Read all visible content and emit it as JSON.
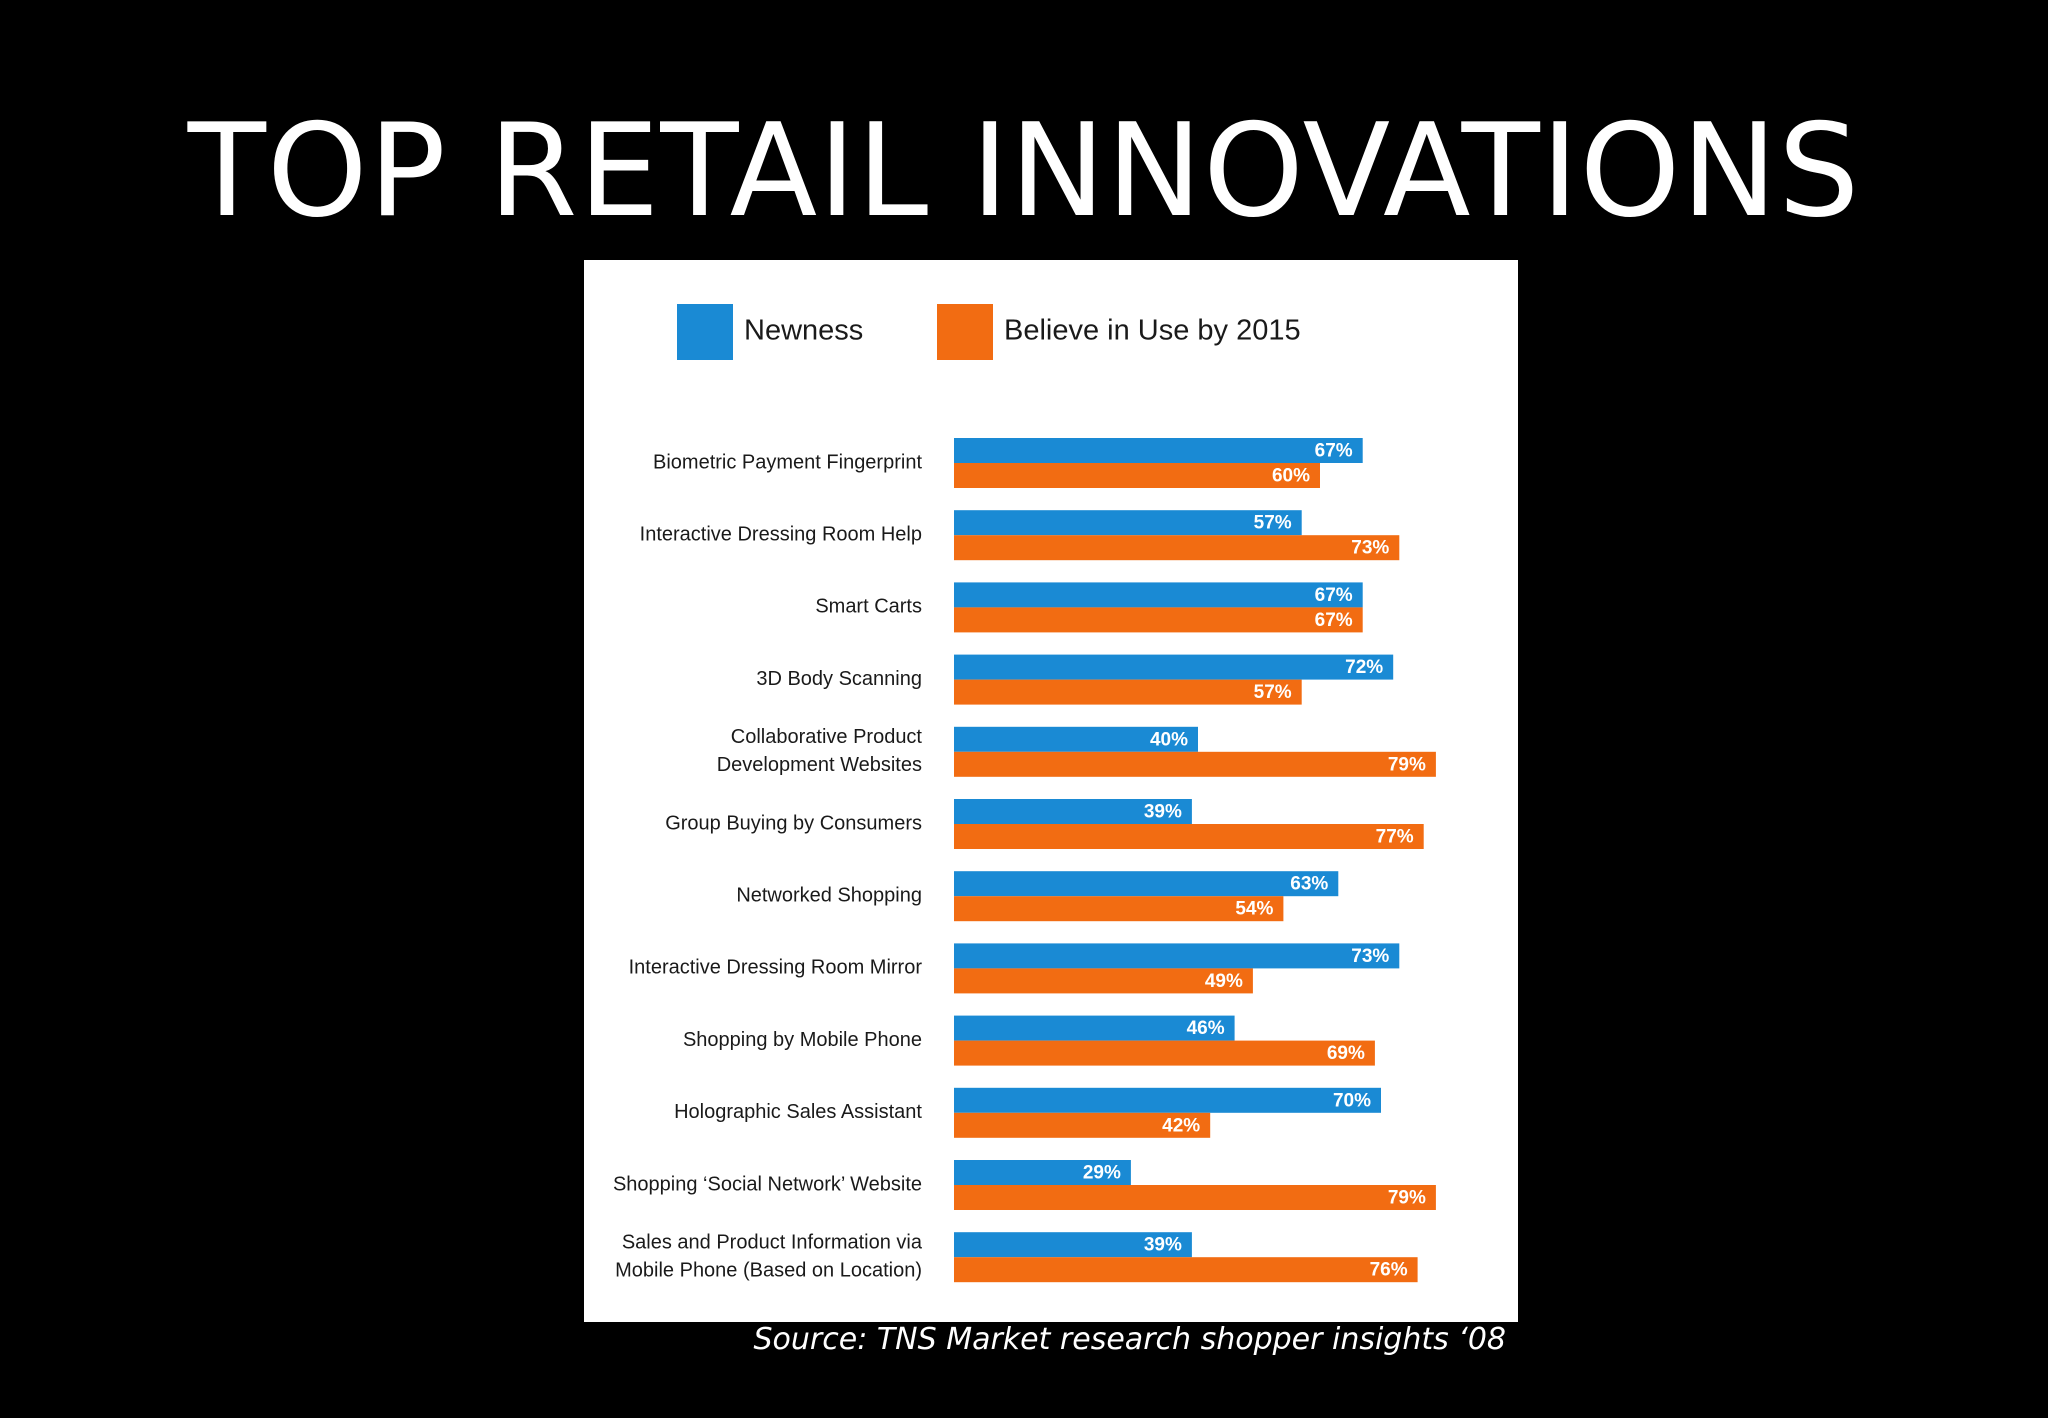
{
  "slide": {
    "title": "TOP RETAIL INNOVATIONS",
    "source": "Source: TNS Market research shopper insights ‘08"
  },
  "colors": {
    "background": "#000000",
    "panel": "#ffffff",
    "newness": "#1a8ad4",
    "believe": "#f26c12",
    "text": "#1a1a1a"
  },
  "chart_data": {
    "type": "bar",
    "orientation": "horizontal",
    "legend_position": "top-left",
    "grid": false,
    "xlim": [
      0,
      100
    ],
    "categories": [
      [
        "Biometric Payment Fingerprint"
      ],
      [
        "Interactive Dressing Room Help"
      ],
      [
        "Smart Carts"
      ],
      [
        "3D Body Scanning"
      ],
      [
        "Collaborative Product",
        "Development Websites"
      ],
      [
        "Group Buying by Consumers"
      ],
      [
        "Networked Shopping"
      ],
      [
        "Interactive Dressing Room Mirror"
      ],
      [
        "Shopping by Mobile Phone"
      ],
      [
        "Holographic Sales Assistant"
      ],
      [
        "Shopping ‘Social Network’ Website"
      ],
      [
        "Sales and Product Information via",
        "Mobile Phone (Based on Location)"
      ]
    ],
    "series": [
      {
        "name": "Newness",
        "color": "#1a8ad4",
        "values": [
          67,
          57,
          67,
          72,
          40,
          39,
          63,
          73,
          46,
          70,
          29,
          39
        ],
        "labels": [
          "67%",
          "57%",
          "67%",
          "72%",
          "40%",
          "39%",
          "63%",
          "73%",
          "46%",
          "70%",
          "29%",
          "39%"
        ]
      },
      {
        "name": "Believe in Use by 2015",
        "color": "#f26c12",
        "values": [
          60,
          73,
          67,
          57,
          79,
          77,
          54,
          49,
          69,
          42,
          79,
          76
        ],
        "labels": [
          "60%",
          "73%",
          "67%",
          "57%",
          "79%",
          "77%",
          "54%",
          "49%",
          "69%",
          "42%",
          "79%",
          "76%"
        ]
      }
    ]
  }
}
